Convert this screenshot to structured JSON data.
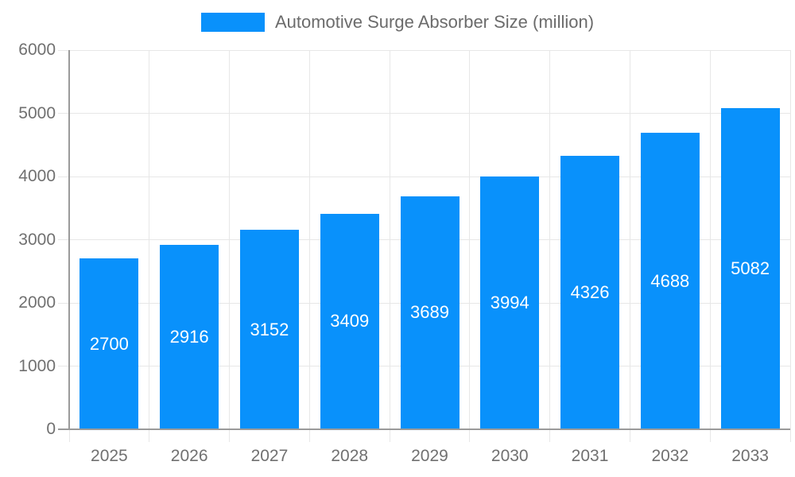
{
  "legend": {
    "label": "Automotive Surge Absorber Size (million)",
    "position": "top"
  },
  "chart_data": {
    "type": "bar",
    "title": "Automotive Surge Absorber Size (million)",
    "categories": [
      "2025",
      "2026",
      "2027",
      "2028",
      "2029",
      "2030",
      "2031",
      "2032",
      "2033"
    ],
    "values": [
      2700,
      2916,
      3152,
      3409,
      3689,
      3994,
      4326,
      4688,
      5082
    ],
    "bar_value_labels": [
      "2700",
      "2916",
      "3152",
      "3409",
      "3689",
      "3994",
      "4326",
      "4688",
      "5082"
    ],
    "xlabel": "",
    "ylabel": "",
    "ylim": [
      0,
      6000
    ],
    "yticks": [
      0,
      1000,
      2000,
      3000,
      4000,
      5000,
      6000
    ],
    "ytick_labels": [
      "0",
      "1000",
      "2000",
      "3000",
      "4000",
      "5000",
      "6000"
    ],
    "grid": true,
    "legend_position": "top",
    "colors": {
      "bar": "#0991fb",
      "bar_label": "#ffffff",
      "axis_text": "#707070",
      "legend_text": "#6b6b6b",
      "grid": "#e7e7e7",
      "axis_line": "#9a9a9a",
      "background": "#ffffff"
    }
  }
}
